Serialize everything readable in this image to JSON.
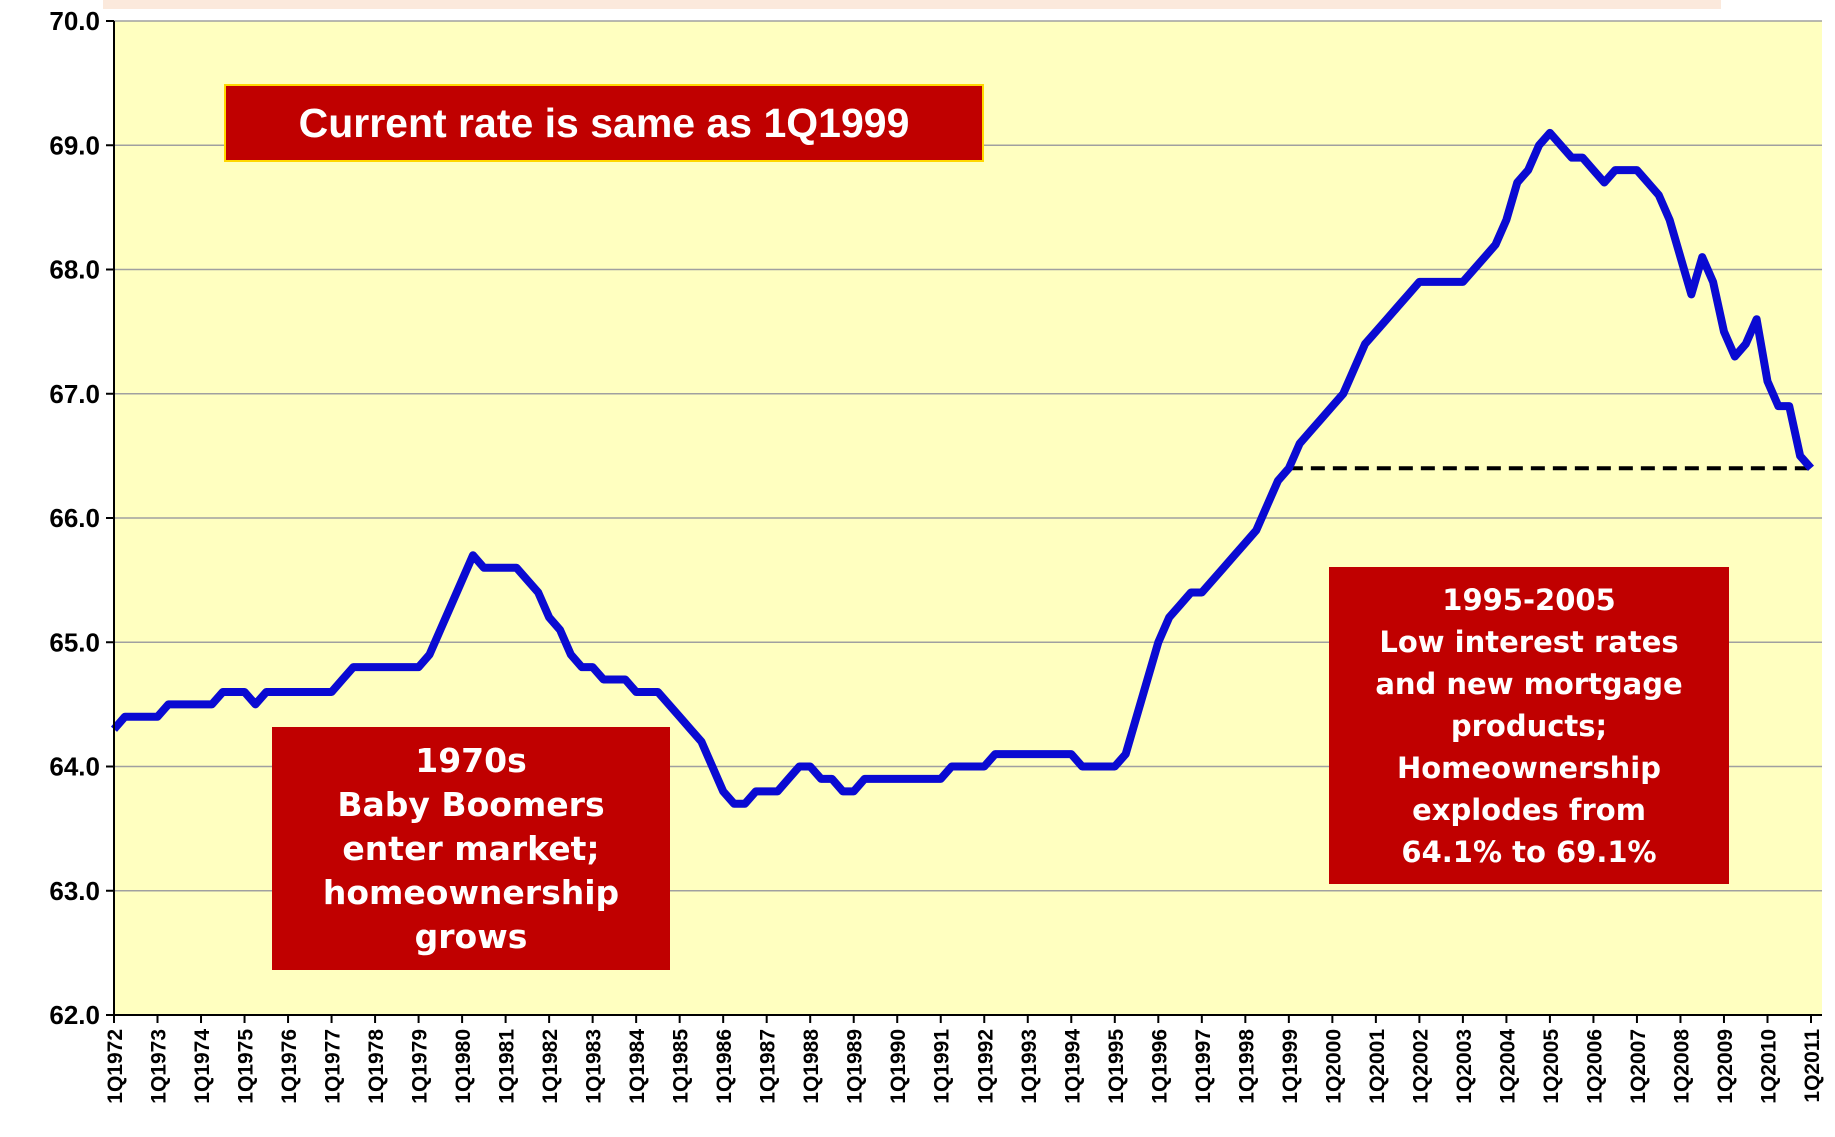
{
  "chart_data": {
    "type": "line",
    "categories": [
      "1Q1972",
      null,
      null,
      null,
      "1Q1973",
      null,
      null,
      null,
      "1Q1974",
      null,
      null,
      null,
      "1Q1975",
      null,
      null,
      null,
      "1Q1976",
      null,
      null,
      null,
      "1Q1977",
      null,
      null,
      null,
      "1Q1978",
      null,
      null,
      null,
      "1Q1979",
      null,
      null,
      null,
      "1Q1980",
      null,
      null,
      null,
      "1Q1981",
      null,
      null,
      null,
      "1Q1982",
      null,
      null,
      null,
      "1Q1983",
      null,
      null,
      null,
      "1Q1984",
      null,
      null,
      null,
      "1Q1985",
      null,
      null,
      null,
      "1Q1986",
      null,
      null,
      null,
      "1Q1987",
      null,
      null,
      null,
      "1Q1988",
      null,
      null,
      null,
      "1Q1989",
      null,
      null,
      null,
      "1Q1990",
      null,
      null,
      null,
      "1Q1991",
      null,
      null,
      null,
      "1Q1992",
      null,
      null,
      null,
      "1Q1993",
      null,
      null,
      null,
      "1Q1994",
      null,
      null,
      null,
      "1Q1995",
      null,
      null,
      null,
      "1Q1996",
      null,
      null,
      null,
      "1Q1997",
      null,
      null,
      null,
      "1Q1998",
      null,
      null,
      null,
      "1Q1999",
      null,
      null,
      null,
      "1Q2000",
      null,
      null,
      null,
      "1Q2001",
      null,
      null,
      null,
      "1Q2002",
      null,
      null,
      null,
      "1Q2003",
      null,
      null,
      null,
      "1Q2004",
      null,
      null,
      null,
      "1Q2005",
      null,
      null,
      null,
      "1Q2006",
      null,
      null,
      null,
      "1Q2007",
      null,
      null,
      null,
      "1Q2008",
      null,
      null,
      null,
      "1Q2009",
      null,
      null,
      null,
      "1Q2010",
      null,
      null,
      null,
      "1Q2011"
    ],
    "series": [
      {
        "color": "#0a0ad2",
        "values": [
          64.3,
          64.4,
          64.4,
          64.4,
          64.4,
          64.5,
          64.5,
          64.5,
          64.5,
          64.5,
          64.6,
          64.6,
          64.6,
          64.5,
          64.6,
          64.6,
          64.6,
          64.6,
          64.6,
          64.6,
          64.6,
          64.7,
          64.8,
          64.8,
          64.8,
          64.8,
          64.8,
          64.8,
          64.8,
          64.9,
          65.1,
          65.3,
          65.5,
          65.7,
          65.6,
          65.6,
          65.6,
          65.6,
          65.5,
          65.4,
          65.2,
          65.1,
          64.9,
          64.8,
          64.8,
          64.7,
          64.7,
          64.7,
          64.6,
          64.6,
          64.6,
          64.5,
          64.4,
          64.3,
          64.2,
          64.0,
          63.8,
          63.7,
          63.7,
          63.8,
          63.8,
          63.8,
          63.9,
          64.0,
          64.0,
          63.9,
          63.9,
          63.8,
          63.8,
          63.9,
          63.9,
          63.9,
          63.9,
          63.9,
          63.9,
          63.9,
          63.9,
          64.0,
          64.0,
          64.0,
          64.0,
          64.1,
          64.1,
          64.1,
          64.1,
          64.1,
          64.1,
          64.1,
          64.1,
          64.0,
          64.0,
          64.0,
          64.0,
          64.1,
          64.4,
          64.7,
          65.0,
          65.2,
          65.3,
          65.4,
          65.4,
          65.5,
          65.6,
          65.7,
          65.8,
          65.9,
          66.1,
          66.3,
          66.4,
          66.6,
          66.7,
          66.8,
          66.9,
          67.0,
          67.2,
          67.4,
          67.5,
          67.6,
          67.7,
          67.8,
          67.9,
          67.9,
          67.9,
          67.9,
          67.9,
          68.0,
          68.1,
          68.2,
          68.4,
          68.7,
          68.8,
          69.0,
          69.1,
          69.0,
          68.9,
          68.9,
          68.8,
          68.7,
          68.8,
          68.8,
          68.8,
          68.7,
          68.6,
          68.4,
          68.1,
          67.8,
          68.1,
          67.9,
          67.5,
          67.3,
          67.4,
          67.6,
          67.1,
          66.9,
          66.9,
          66.5,
          66.4
        ]
      }
    ],
    "ylim": [
      62,
      70
    ],
    "yticks": [
      {
        "value": 62,
        "label": "62.0"
      },
      {
        "value": 63,
        "label": "63.0"
      },
      {
        "value": 64,
        "label": "64.0"
      },
      {
        "value": 65,
        "label": "65.0"
      },
      {
        "value": 66,
        "label": "66.0"
      },
      {
        "value": 67,
        "label": "67.0"
      },
      {
        "value": 68,
        "label": "68.0"
      },
      {
        "value": 69,
        "label": "69.0"
      },
      {
        "value": 70,
        "label": "70.0"
      }
    ],
    "grid": true,
    "reference_line": {
      "value": 66.4,
      "x": [
        "1Q1999",
        "1Q2011"
      ],
      "color": "#000000"
    },
    "annotations": [
      {
        "lines": [
          "Current rate is same as 1Q1999"
        ]
      },
      {
        "lines": [
          "1970s",
          "Baby Boomers",
          "enter market;",
          "homeownership",
          "grows"
        ]
      },
      {
        "lines": [
          "1995-2005",
          "Low interest rates",
          "and new mortgage",
          "products;",
          "Homeownership",
          "explodes from",
          "64.1% to 69.1%"
        ]
      }
    ]
  }
}
